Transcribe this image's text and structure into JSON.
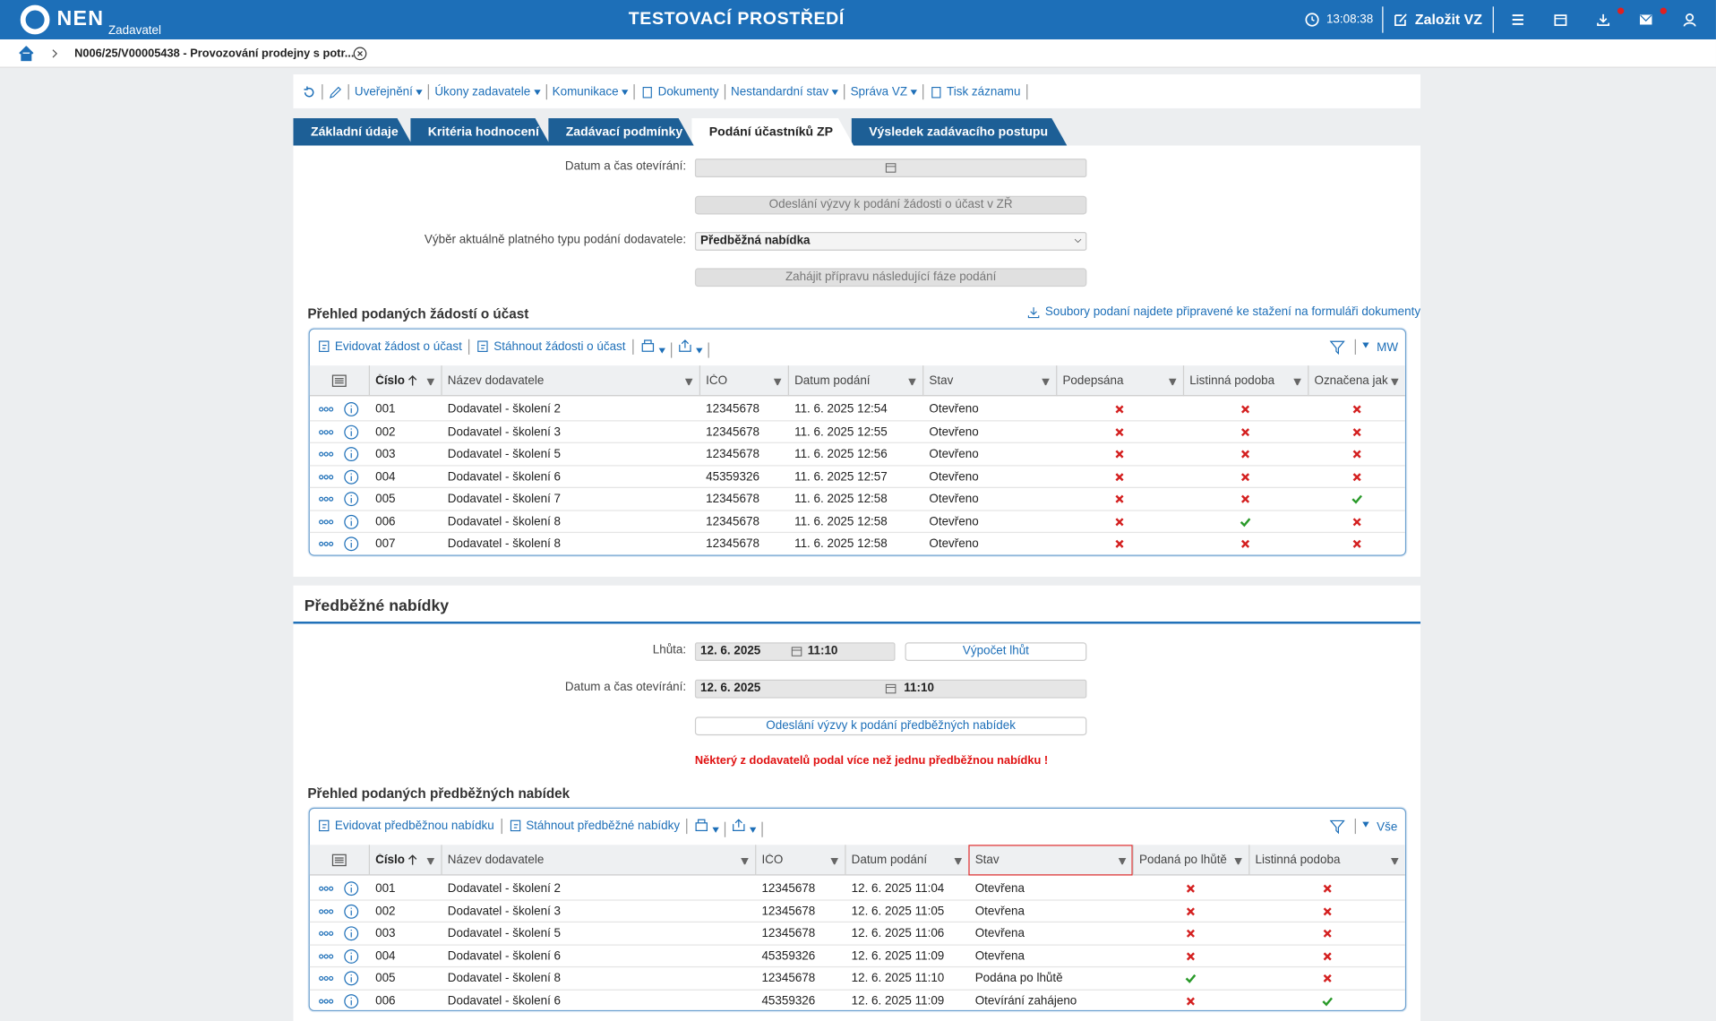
{
  "header": {
    "logo": "NEN",
    "role": "Zadavatel",
    "env": "TESTOVACÍ PROSTŘEDÍ",
    "time": "13:08:38",
    "create": "Založit VZ"
  },
  "breadcrumb": "N006/25/V00005438 - Provozování prodejny s potr...",
  "toolbar": [
    "Uveřejnění",
    "Úkony zadavatele",
    "Komunikace",
    "Dokumenty",
    "Nestandardní stav",
    "Správa VZ",
    "Tisk záznamu"
  ],
  "tabs": [
    "Základní údaje",
    "Kritéria hodnocení",
    "Zadávací podmínky",
    "Podání účastníků ZP",
    "Výsledek zadávacího postupu"
  ],
  "active_tab": 3,
  "form1": {
    "opening_label": "Datum a čas otevírání:",
    "send_button": "Odeslání výzvy k podání žádosti o účast v ZŘ",
    "type_label": "Výběr aktuálně platného typu podání dodavatele:",
    "type_value": "Předběžná nabídka",
    "next_button": "Zahájit přípravu následující fáze podání"
  },
  "table1": {
    "title": "Přehled podaných žádostí o účast",
    "note": "Soubory podaní najdete připravené ke stažení na formuláři dokumenty",
    "actions": [
      "Evidovat žádost o účast",
      "Stáhnout žádosti o účast"
    ],
    "view": "MW",
    "columns": [
      "Číslo",
      "Název dodavatele",
      "IČO",
      "Datum podání",
      "Stav",
      "Podepsána",
      "Listinná podoba",
      "Označena jako ne"
    ],
    "rows": [
      {
        "cells": [
          "001",
          "Dodavatel - školení 2",
          "12345678",
          "11. 6. 2025 12:54",
          "Otevřeno"
        ],
        "flags": [
          false,
          false,
          false
        ]
      },
      {
        "cells": [
          "002",
          "Dodavatel - školení 3",
          "12345678",
          "11. 6. 2025 12:55",
          "Otevřeno"
        ],
        "flags": [
          false,
          false,
          false
        ]
      },
      {
        "cells": [
          "003",
          "Dodavatel - školení 5",
          "12345678",
          "11. 6. 2025 12:56",
          "Otevřeno"
        ],
        "flags": [
          false,
          false,
          false
        ]
      },
      {
        "cells": [
          "004",
          "Dodavatel - školení 6",
          "45359326",
          "11. 6. 2025 12:57",
          "Otevřeno"
        ],
        "flags": [
          false,
          false,
          false
        ]
      },
      {
        "cells": [
          "005",
          "Dodavatel - školení 7",
          "12345678",
          "11. 6. 2025 12:58",
          "Otevřeno"
        ],
        "flags": [
          false,
          false,
          true
        ]
      },
      {
        "cells": [
          "006",
          "Dodavatel - školení 8",
          "12345678",
          "11. 6. 2025 12:58",
          "Otevřeno"
        ],
        "flags": [
          false,
          true,
          false
        ]
      },
      {
        "cells": [
          "007",
          "Dodavatel - školení 8",
          "12345678",
          "11. 6. 2025 12:58",
          "Otevřeno"
        ],
        "flags": [
          false,
          false,
          false
        ]
      }
    ]
  },
  "section2": {
    "title": "Předběžné nabídky",
    "deadline_label": "Lhůta:",
    "deadline_date": "12. 6. 2025",
    "deadline_time": "11:10",
    "calc_button": "Výpočet lhůt",
    "opening_label": "Datum a čas otevírání:",
    "opening_date": "12. 6. 2025",
    "opening_time": "11:10",
    "send_button": "Odeslání výzvy k podání předběžných nabídek",
    "warning": "Některý z dodavatelů podal více než jednu předběžnou nabídku !"
  },
  "table2": {
    "title": "Přehled podaných předběžných nabídek",
    "actions": [
      "Evidovat předběžnou nabídku",
      "Stáhnout předběžné nabídky"
    ],
    "view": "Vše",
    "columns": [
      "Číslo",
      "Název dodavatele",
      "IČO",
      "Datum podání",
      "Stav",
      "Podaná po lhůtě",
      "Listinná podoba"
    ],
    "rows": [
      {
        "cells": [
          "001",
          "Dodavatel - školení 2",
          "12345678",
          "12. 6. 2025 11:04",
          "Otevřena"
        ],
        "flags": [
          false,
          false
        ]
      },
      {
        "cells": [
          "002",
          "Dodavatel - školení 3",
          "12345678",
          "12. 6. 2025 11:05",
          "Otevřena"
        ],
        "flags": [
          false,
          false
        ]
      },
      {
        "cells": [
          "003",
          "Dodavatel - školení 5",
          "12345678",
          "12. 6. 2025 11:06",
          "Otevřena"
        ],
        "flags": [
          false,
          false
        ]
      },
      {
        "cells": [
          "004",
          "Dodavatel - školení 6",
          "45359326",
          "12. 6. 2025 11:09",
          "Otevřena"
        ],
        "flags": [
          false,
          false
        ]
      },
      {
        "cells": [
          "005",
          "Dodavatel - školení 8",
          "12345678",
          "12. 6. 2025 11:10",
          "Podána po lhůtě"
        ],
        "flags": [
          true,
          false
        ]
      },
      {
        "cells": [
          "006",
          "Dodavatel - školení 6",
          "45359326",
          "12. 6. 2025 11:09",
          "Otevírání zahájeno"
        ],
        "flags": [
          false,
          true
        ]
      }
    ]
  }
}
